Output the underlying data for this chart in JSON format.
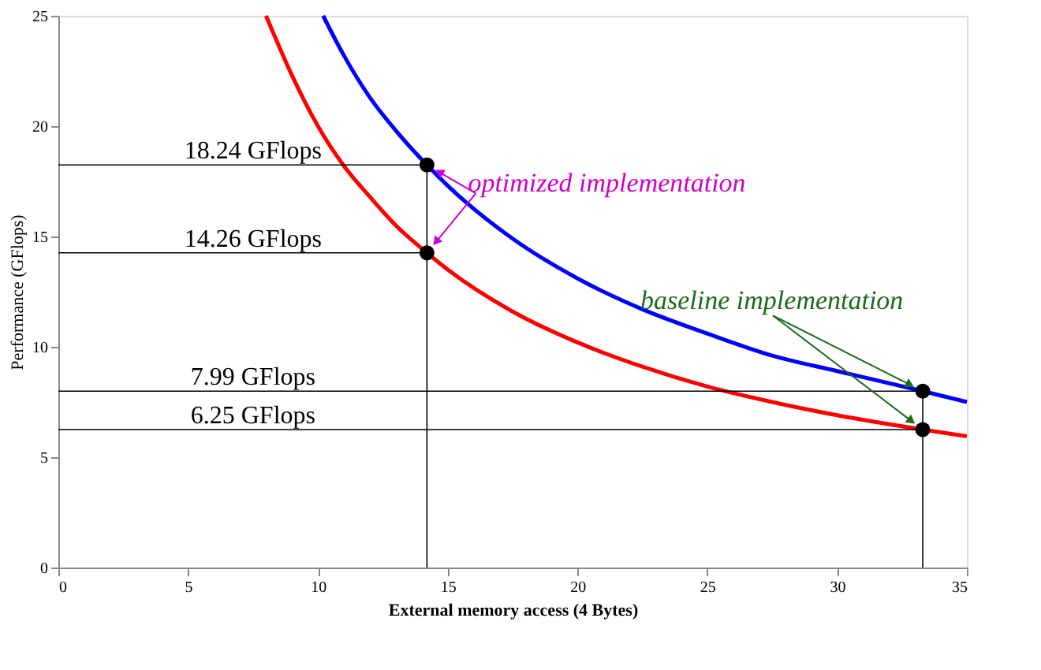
{
  "chart_data": {
    "type": "line",
    "xlabel": "External memory access (4 Bytes)",
    "ylabel": "Performance (GFlops)",
    "xlim": [
      0,
      35
    ],
    "ylim": [
      0,
      25
    ],
    "xticks": [
      0,
      5,
      10,
      15,
      20,
      25,
      30,
      35
    ],
    "yticks": [
      0,
      5,
      10,
      15,
      20,
      25
    ],
    "grid": false,
    "series": [
      {
        "color": "#ff0000",
        "x": [
          8.0,
          9,
          10,
          11,
          12,
          13,
          14.2,
          15,
          17.5,
          20,
          22.5,
          25,
          27.5,
          30,
          33.3,
          35
        ],
        "values": [
          25,
          22.3,
          20.0,
          18.2,
          16.8,
          15.5,
          14.26,
          13.5,
          11.6,
          10.2,
          9.1,
          8.2,
          7.5,
          6.9,
          6.25,
          5.95
        ]
      },
      {
        "color": "#0000ff",
        "x": [
          10.2,
          11,
          12,
          13,
          14.2,
          15,
          17.5,
          20,
          22.5,
          25,
          27.5,
          30,
          33.3,
          35
        ],
        "values": [
          25,
          23.2,
          21.3,
          19.8,
          18.24,
          17.3,
          14.9,
          13.1,
          11.7,
          10.6,
          9.6,
          8.9,
          7.99,
          7.5
        ]
      },
      {
        "type": "line",
        "color": "#000000",
        "x": [
          0,
          14.2
        ],
        "values": [
          18.24,
          18.24
        ]
      },
      {
        "type": "line",
        "color": "#000000",
        "x": [
          0,
          14.2
        ],
        "values": [
          14.26,
          14.26
        ]
      },
      {
        "type": "line",
        "color": "#000000",
        "x": [
          0,
          33.3
        ],
        "values": [
          7.99,
          7.99
        ]
      },
      {
        "type": "line",
        "color": "#000000",
        "x": [
          0,
          33.3
        ],
        "values": [
          6.25,
          6.25
        ]
      },
      {
        "type": "line",
        "color": "#000000",
        "x": [
          14.2,
          14.2
        ],
        "values": [
          0,
          18.24
        ]
      },
      {
        "type": "line",
        "color": "#000000",
        "x": [
          33.3,
          33.3
        ],
        "values": [
          0,
          7.99
        ]
      },
      {
        "type": "scatter",
        "color": "#000000",
        "marker": "circle",
        "x": [
          14.2,
          14.2,
          33.3,
          33.3
        ],
        "values": [
          18.24,
          14.26,
          7.99,
          6.25
        ]
      }
    ],
    "annotations": [
      {
        "text": "optimized implementation",
        "x": 14.2,
        "y": 18.24
      },
      {
        "text": "baseline implementation",
        "x": 33.3,
        "y": 7.99
      },
      {
        "text": "18.24 GFlops",
        "x": 7.5,
        "y": 18.24
      },
      {
        "text": "14.26 GFlops",
        "x": 7.5,
        "y": 14.26
      },
      {
        "text": "7.99 GFlops",
        "x": 7.5,
        "y": 7.99
      },
      {
        "text": "6.25 GFlops",
        "x": 7.5,
        "y": 6.25
      }
    ]
  }
}
